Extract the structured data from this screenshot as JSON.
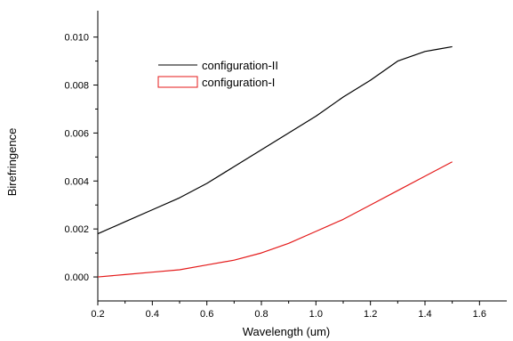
{
  "chart_data": {
    "type": "line",
    "xlabel": "Wavelength (um)",
    "ylabel": "Birefringence",
    "xlim": [
      0.2,
      1.7
    ],
    "ylim": [
      -0.001,
      0.0111
    ],
    "xticks": [
      0.2,
      0.4,
      0.6,
      0.8,
      1.0,
      1.2,
      1.4,
      1.6
    ],
    "xtick_labels": [
      "0.2",
      "0.4",
      "0.6",
      "0.8",
      "1.0",
      "1.2",
      "1.4",
      "1.6"
    ],
    "yticks": [
      0.0,
      0.002,
      0.004,
      0.006,
      0.008,
      0.01
    ],
    "ytick_labels": [
      "0.000",
      "0.002",
      "0.004",
      "0.006",
      "0.008",
      "0.010"
    ],
    "grid": false,
    "legend_position": "top-center",
    "series": [
      {
        "name": "configuration-II",
        "color": "#000000",
        "x": [
          0.2,
          0.3,
          0.4,
          0.5,
          0.6,
          0.7,
          0.8,
          0.9,
          1.0,
          1.1,
          1.2,
          1.25,
          1.3,
          1.35,
          1.4,
          1.45,
          1.5
        ],
        "y": [
          0.0018,
          0.0023,
          0.0028,
          0.0033,
          0.0039,
          0.0046,
          0.0053,
          0.006,
          0.0067,
          0.0075,
          0.0082,
          0.0086,
          0.009,
          0.0092,
          0.0094,
          0.0095,
          0.0096
        ]
      },
      {
        "name": "configuration-I",
        "color": "#e41a1a",
        "x": [
          0.2,
          0.3,
          0.4,
          0.5,
          0.6,
          0.7,
          0.8,
          0.9,
          1.0,
          1.1,
          1.2,
          1.3,
          1.4,
          1.5
        ],
        "y": [
          0.0,
          0.0001,
          0.0002,
          0.0003,
          0.0005,
          0.0007,
          0.001,
          0.0014,
          0.0019,
          0.0024,
          0.003,
          0.0036,
          0.0042,
          0.0048
        ]
      }
    ]
  }
}
